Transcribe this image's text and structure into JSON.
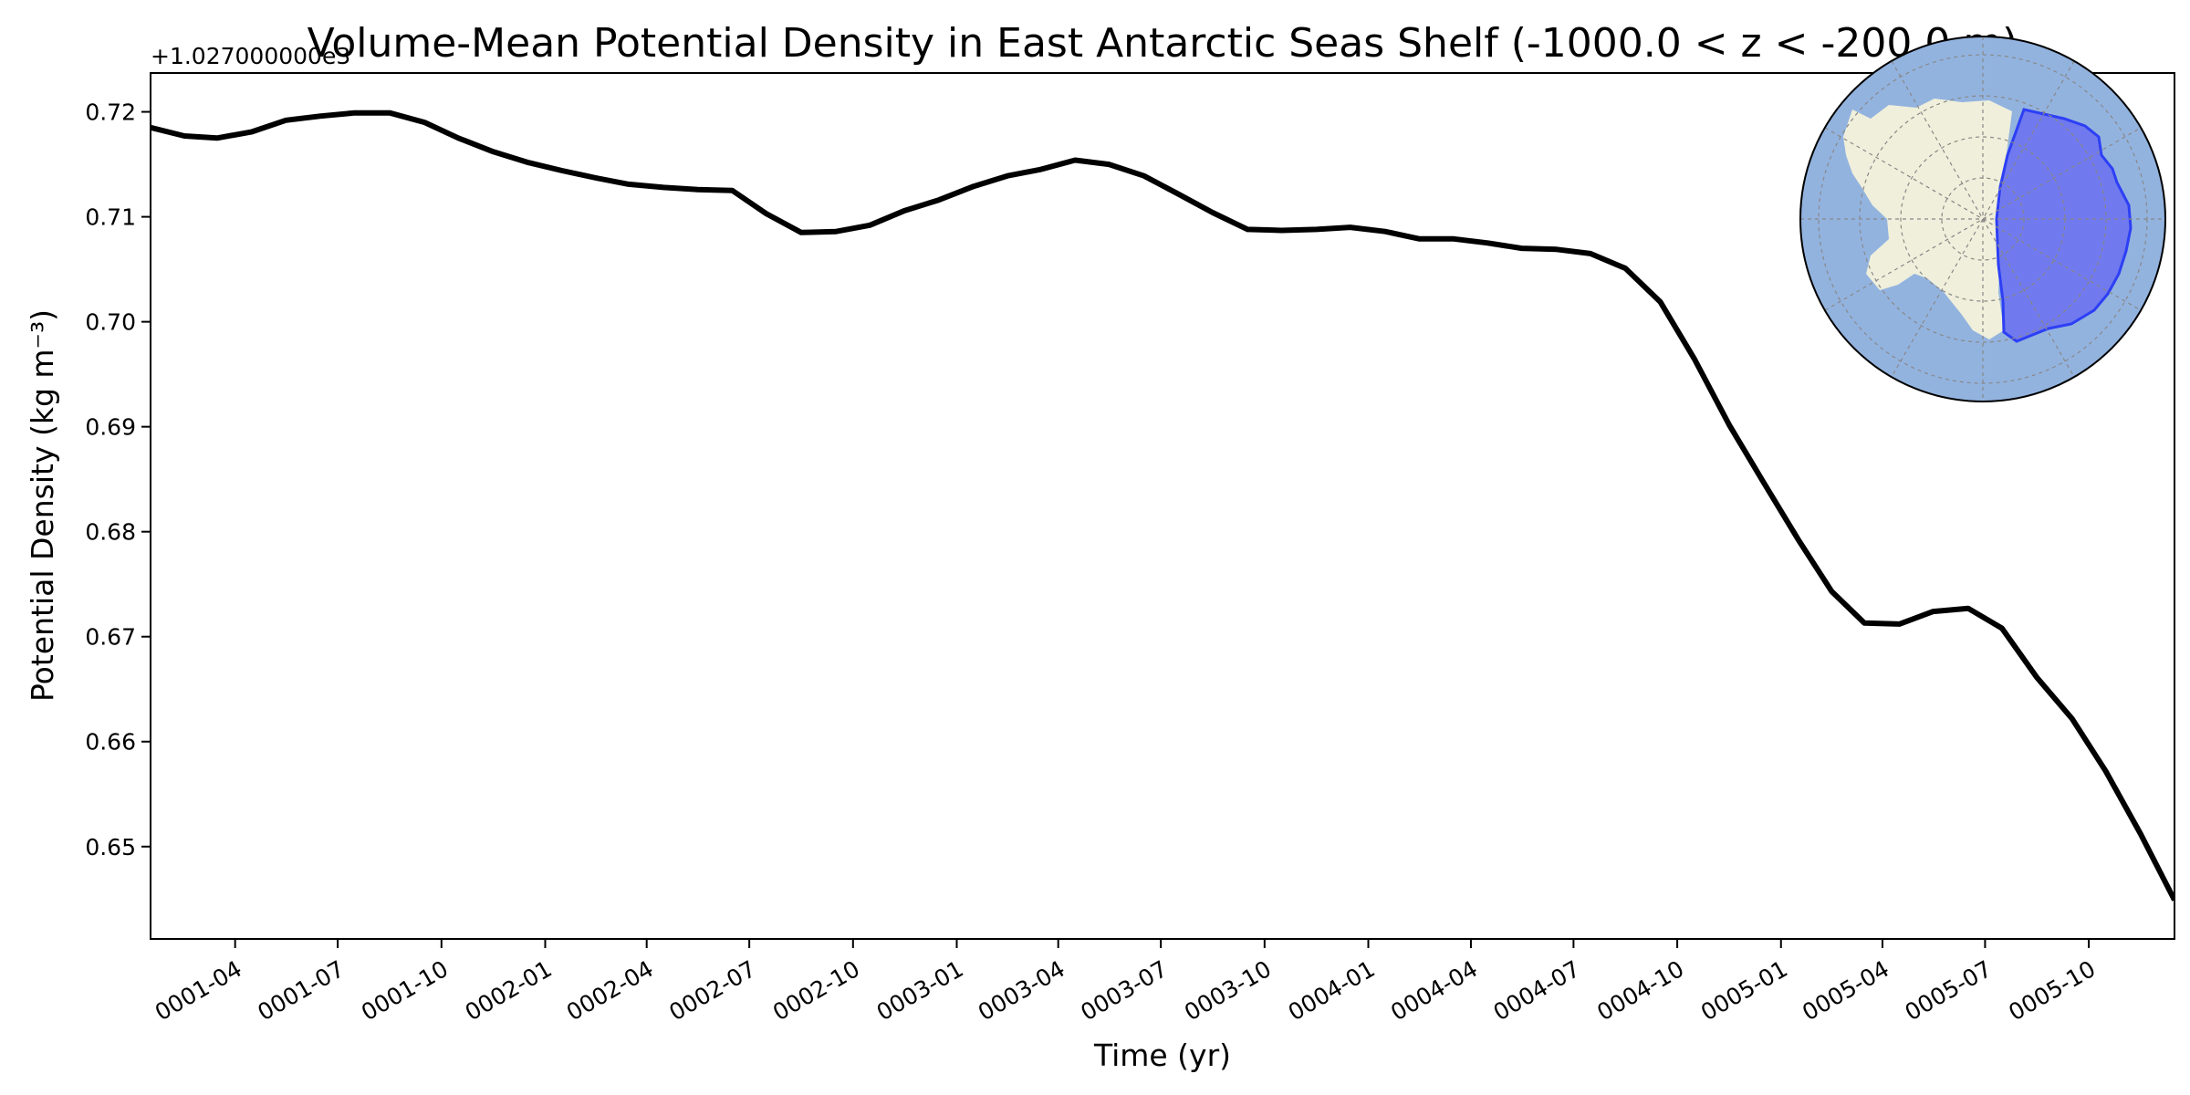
{
  "chart_data": {
    "type": "line",
    "title": "Volume-Mean Potential Density in East Antarctic Seas Shelf (-1000.0 < z < -200.0 m)",
    "xlabel": "Time (yr)",
    "ylabel": "Potential Density (kg m⁻³)",
    "offset_label": "+1.027000000e3",
    "x_ticks": [
      "0001-04",
      "0001-07",
      "0001-10",
      "0002-01",
      "0002-04",
      "0002-07",
      "0002-10",
      "0003-01",
      "0003-04",
      "0003-07",
      "0003-10",
      "0004-01",
      "0004-04",
      "0004-07",
      "0004-10",
      "0005-01",
      "0005-04",
      "0005-07",
      "0005-10"
    ],
    "y_ticks": [
      "0.65",
      "0.66",
      "0.67",
      "0.68",
      "0.69",
      "0.70",
      "0.71",
      "0.72"
    ],
    "xlim": [
      "0001-01-16",
      "0005-12-16"
    ],
    "ylim": [
      0.6412,
      0.7237
    ],
    "grid": false,
    "line_color": "#000000",
    "series": [
      {
        "x": [
          "0001-01-16",
          "0001-02-15",
          "0001-03-16",
          "0001-04-16",
          "0001-05-16",
          "0001-06-16",
          "0001-07-16",
          "0001-08-16",
          "0001-09-16",
          "0001-10-16",
          "0001-11-16",
          "0001-12-16",
          "0002-01-16",
          "0002-02-15",
          "0002-03-16",
          "0002-04-16",
          "0002-05-16",
          "0002-06-16",
          "0002-07-16",
          "0002-08-16",
          "0002-09-16",
          "0002-10-16",
          "0002-11-16",
          "0002-12-16",
          "0003-01-16",
          "0003-02-15",
          "0003-03-16",
          "0003-04-16",
          "0003-05-16",
          "0003-06-16",
          "0003-07-16",
          "0003-08-16",
          "0003-09-16",
          "0003-10-16",
          "0003-11-16",
          "0003-12-16",
          "0004-01-16",
          "0004-02-15",
          "0004-03-16",
          "0004-04-16",
          "0004-05-16",
          "0004-06-16",
          "0004-07-16",
          "0004-08-16",
          "0004-09-16",
          "0004-10-16",
          "0004-11-16",
          "0004-12-16",
          "0005-01-16",
          "0005-02-15",
          "0005-03-16",
          "0005-04-16",
          "0005-05-16",
          "0005-06-16",
          "0005-07-16",
          "0005-08-16",
          "0005-09-16",
          "0005-10-16",
          "0005-11-16",
          "0005-12-16"
        ],
        "values": [
          0.7185,
          0.7177,
          0.7175,
          0.7181,
          0.7192,
          0.7196,
          0.7199,
          0.7199,
          0.719,
          0.7175,
          0.7162,
          0.7152,
          0.7144,
          0.7137,
          0.7131,
          0.7128,
          0.7126,
          0.7125,
          0.7103,
          0.7085,
          0.7086,
          0.7092,
          0.7106,
          0.7116,
          0.7129,
          0.7139,
          0.7145,
          0.7154,
          0.715,
          0.7139,
          0.7122,
          0.7104,
          0.7088,
          0.7087,
          0.7088,
          0.709,
          0.7086,
          0.7079,
          0.7079,
          0.7075,
          0.707,
          0.7069,
          0.7065,
          0.7051,
          0.7019,
          0.6965,
          0.6902,
          0.6848,
          0.6793,
          0.6743,
          0.6713,
          0.6712,
          0.6724,
          0.6727,
          0.6708,
          0.6661,
          0.6622,
          0.6572,
          0.6512,
          0.6449
        ]
      }
    ],
    "inset_map": {
      "ocean_color": "#93b3df",
      "land_color": "#efefdb",
      "region_color": "#6a6ff0",
      "region_edge_color": "#2d3ff5"
    }
  }
}
